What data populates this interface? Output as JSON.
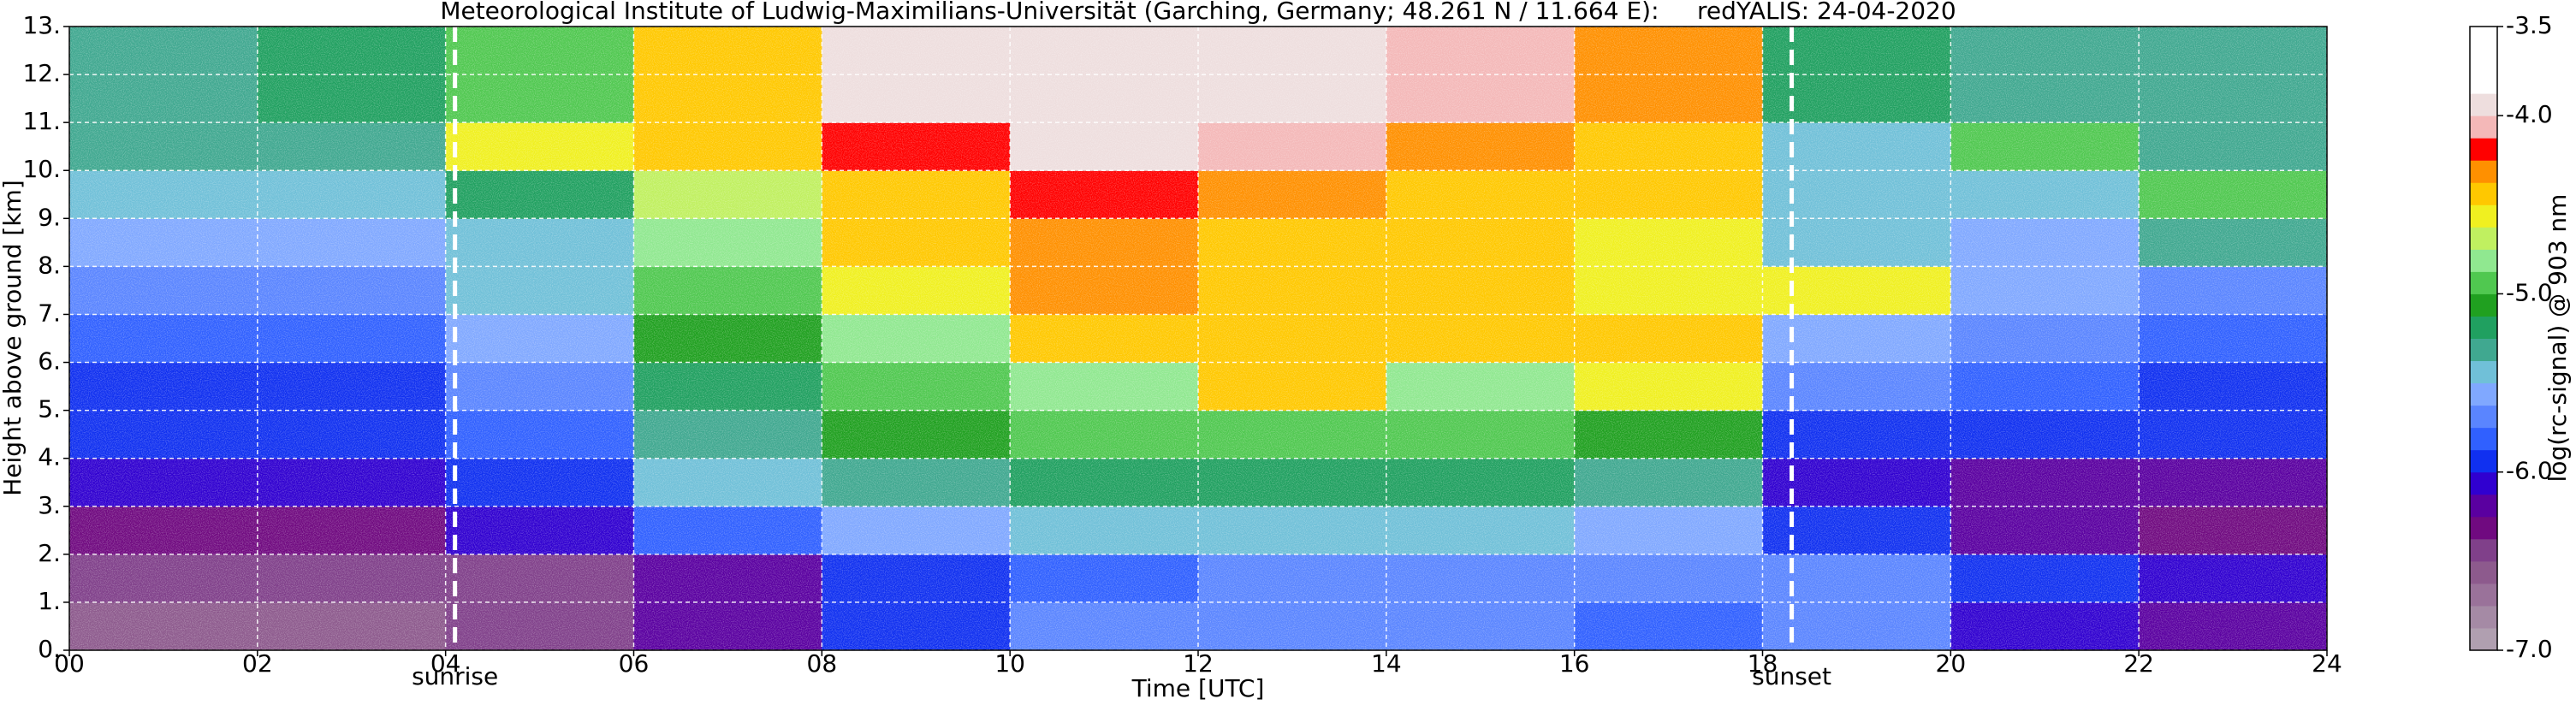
{
  "chart_data": {
    "type": "heatmap",
    "title": "Meteorological Institute of Ludwig-Maximilians-Universität (Garching, Germany; 48.261 N / 11.664 E):     redYALIS: 24-04-2020",
    "x_label": "Time [UTC]",
    "y_label": "Height above ground [km]",
    "colorbar_label": "log(rc-signal) @ 903 nm",
    "x_edges": [
      0,
      2,
      4,
      6,
      8,
      10,
      12,
      14,
      16,
      18,
      20,
      22,
      24
    ],
    "y_edges": [
      0,
      1,
      2,
      3,
      4,
      5,
      6,
      7,
      8,
      9,
      10,
      11,
      12,
      13
    ],
    "z": [
      [
        -6.6,
        -6.6,
        -6.5,
        -6.2,
        -5.9,
        -5.7,
        -5.7,
        -5.7,
        -5.8,
        -5.7,
        -6.1,
        -6.2
      ],
      [
        -6.5,
        -6.5,
        -6.4,
        -6.2,
        -6.0,
        -5.8,
        -5.7,
        -5.7,
        -5.7,
        -5.7,
        -6.0,
        -6.1
      ],
      [
        -6.3,
        -6.3,
        -6.1,
        -5.8,
        -5.6,
        -5.5,
        -5.5,
        -5.5,
        -5.6,
        -5.9,
        -6.2,
        -6.3
      ],
      [
        -6.1,
        -6.1,
        -5.9,
        -5.5,
        -5.3,
        -5.2,
        -5.2,
        -5.2,
        -5.3,
        -6.1,
        -6.2,
        -6.2
      ],
      [
        -6.0,
        -6.0,
        -5.8,
        -5.3,
        -5.1,
        -5.0,
        -5.0,
        -5.0,
        -5.1,
        -5.9,
        -6.0,
        -6.0
      ],
      [
        -5.9,
        -5.9,
        -5.7,
        -5.2,
        -5.0,
        -4.8,
        -4.5,
        -4.8,
        -4.6,
        -5.7,
        -5.8,
        -5.9
      ],
      [
        -5.8,
        -5.8,
        -5.6,
        -5.1,
        -4.8,
        -4.5,
        -4.5,
        -4.4,
        -4.4,
        -5.6,
        -5.7,
        -5.8
      ],
      [
        -5.7,
        -5.7,
        -5.5,
        -5.0,
        -4.6,
        -4.3,
        -4.5,
        -4.4,
        -4.6,
        -4.6,
        -5.6,
        -5.7
      ],
      [
        -5.6,
        -5.6,
        -5.4,
        -4.8,
        -4.5,
        -4.3,
        -4.4,
        -4.5,
        -4.6,
        -5.5,
        -5.6,
        -5.3
      ],
      [
        -5.5,
        -5.5,
        -5.2,
        -4.7,
        -4.4,
        -4.2,
        -4.3,
        -4.4,
        -4.5,
        -5.5,
        -5.4,
        -5.0
      ],
      [
        -5.3,
        -5.3,
        -4.6,
        -4.5,
        -4.2,
        -4.0,
        -4.1,
        -4.3,
        -4.4,
        -5.4,
        -5.0,
        -5.3
      ],
      [
        -5.3,
        -5.2,
        -4.9,
        -4.4,
        -4.0,
        -3.9,
        -3.9,
        -4.1,
        -4.3,
        -5.2,
        -5.3,
        -5.3
      ],
      [
        -5.3,
        -5.2,
        -4.9,
        -4.4,
        -4.0,
        -3.9,
        -3.9,
        -4.1,
        -4.3,
        -5.2,
        -5.3,
        -5.3
      ]
    ],
    "clim": [
      -7,
      -3.5
    ],
    "colors": [
      "#b09fb0",
      "#a58aa5",
      "#9a729a",
      "#8d5a8d",
      "#80408a",
      "#700a80",
      "#5a00a0",
      "#3000d0",
      "#1030f0",
      "#3060ff",
      "#5a85ff",
      "#80a8ff",
      "#70c0d8",
      "#40a890",
      "#20a060",
      "#20a020",
      "#50c850",
      "#90e890",
      "#c0f060",
      "#f0f020",
      "#ffc800",
      "#ff9000",
      "#ff0000",
      "#f4b8b8",
      "#eedede",
      "#ffffff",
      "#ffffff",
      "#ffffff"
    ],
    "xlim": [
      0,
      24
    ],
    "ylim": [
      0,
      13
    ],
    "xticks": [
      {
        "value": 0,
        "label": "00"
      },
      {
        "value": 2,
        "label": "02"
      },
      {
        "value": 4,
        "label": "04"
      },
      {
        "value": 6,
        "label": "06"
      },
      {
        "value": 8,
        "label": "08"
      },
      10,
      12,
      14,
      16,
      18,
      20,
      22,
      24
    ],
    "yticks": [
      {
        "value": 0,
        "label": "0."
      },
      {
        "value": 1,
        "label": "1."
      },
      {
        "value": 2,
        "label": "2."
      },
      {
        "value": 3,
        "label": "3."
      },
      {
        "value": 4,
        "label": "4."
      },
      {
        "value": 5,
        "label": "5."
      },
      {
        "value": 6,
        "label": "6."
      },
      {
        "value": 7,
        "label": "7."
      },
      {
        "value": 8,
        "label": "8."
      },
      {
        "value": 9,
        "label": "9."
      },
      {
        "value": 10,
        "label": "10."
      },
      {
        "value": 11,
        "label": "11."
      },
      {
        "value": 12,
        "label": "12."
      },
      {
        "value": 13,
        "label": "13."
      }
    ],
    "cticks": [
      {
        "value": -7,
        "label": "-7.0"
      },
      {
        "value": -6,
        "label": "-6.0"
      },
      {
        "value": -5,
        "label": "-5.0"
      },
      {
        "value": -4,
        "label": "-4.0"
      },
      -3.5
    ],
    "grid": true,
    "annotations": [
      {
        "x": 4.1,
        "text": "sunrise"
      },
      {
        "x": 18.31,
        "text": "sunset"
      }
    ]
  }
}
